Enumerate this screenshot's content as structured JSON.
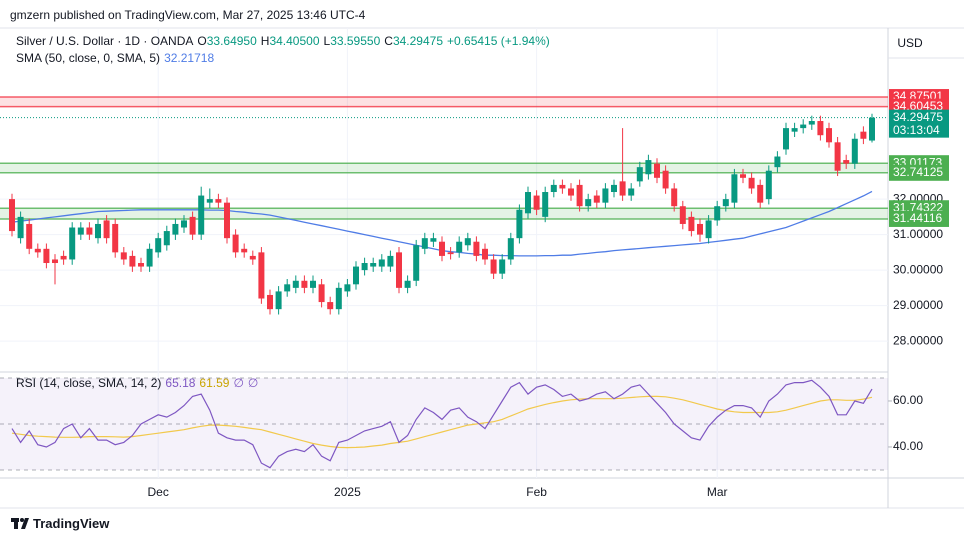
{
  "header": {
    "text": "gmzern published on TradingView.com, Mar 27, 2025 13:46 UTC-4"
  },
  "chart_data": [
    {
      "type": "candlestick",
      "title": "Silver / U.S. Dollar · 1D · OANDA",
      "legend": {
        "o": "O",
        "open": "33.64950",
        "h": "H",
        "high": "34.40500",
        "l": "L",
        "low": "33.59550",
        "c": "C",
        "close": "34.29475",
        "change": "+0.65415 (+1.94%)"
      },
      "currency": "USD",
      "categories": [
        null,
        null,
        null,
        null,
        null,
        null,
        null,
        null,
        null,
        null,
        null,
        null,
        null,
        null,
        null,
        null,
        null,
        "Dec",
        null,
        null,
        null,
        null,
        null,
        null,
        null,
        null,
        null,
        null,
        null,
        null,
        null,
        null,
        null,
        null,
        null,
        null,
        null,
        null,
        null,
        "2025",
        null,
        null,
        null,
        null,
        null,
        null,
        null,
        null,
        null,
        null,
        null,
        null,
        null,
        null,
        null,
        null,
        null,
        null,
        null,
        null,
        null,
        "Feb",
        null,
        null,
        null,
        null,
        null,
        null,
        null,
        null,
        null,
        null,
        null,
        null,
        null,
        null,
        null,
        null,
        null,
        null,
        null,
        null,
        "Mar",
        null,
        null,
        null,
        null,
        null,
        null,
        null,
        null,
        null,
        null,
        null,
        null,
        null,
        null,
        null,
        null,
        null,
        null
      ],
      "open": [
        32.0,
        30.9,
        31.3,
        30.6,
        30.6,
        30.3,
        30.4,
        30.3,
        31.0,
        31.2,
        30.9,
        31.4,
        31.3,
        30.5,
        30.4,
        30.2,
        30.1,
        30.5,
        30.7,
        31.0,
        31.2,
        31.5,
        31.0,
        31.9,
        32.0,
        31.9,
        31.0,
        30.6,
        30.4,
        30.5,
        29.3,
        28.9,
        29.4,
        29.5,
        29.7,
        29.5,
        29.6,
        29.1,
        28.9,
        29.4,
        29.6,
        30.0,
        30.1,
        30.1,
        30.1,
        30.5,
        29.5,
        29.7,
        30.6,
        30.8,
        30.8,
        30.5,
        30.5,
        30.7,
        30.8,
        30.6,
        30.3,
        29.9,
        30.3,
        30.9,
        31.6,
        32.1,
        31.5,
        32.2,
        32.4,
        32.3,
        32.4,
        31.8,
        32.1,
        31.9,
        32.2,
        32.5,
        32.1,
        32.5,
        32.7,
        33.0,
        32.8,
        32.3,
        31.8,
        31.5,
        31.3,
        30.9,
        31.4,
        31.8,
        31.9,
        32.7,
        32.6,
        32.4,
        32.0,
        32.9,
        33.4,
        33.9,
        34.0,
        34.1,
        34.2,
        34.0,
        33.6,
        33.1,
        33.0,
        33.9,
        33.6495
      ],
      "high": [
        32.15,
        31.65,
        31.45,
        30.75,
        30.75,
        30.45,
        30.55,
        31.35,
        31.35,
        31.35,
        31.45,
        31.55,
        31.45,
        30.65,
        30.55,
        30.35,
        30.75,
        31.05,
        31.25,
        31.45,
        31.55,
        31.65,
        32.35,
        32.3,
        32.15,
        32.05,
        31.15,
        30.75,
        30.55,
        30.65,
        29.45,
        29.55,
        29.75,
        29.85,
        29.85,
        29.85,
        29.75,
        29.25,
        29.65,
        29.75,
        30.25,
        30.35,
        30.35,
        30.45,
        30.55,
        30.65,
        29.85,
        30.85,
        31.05,
        31.05,
        30.95,
        30.65,
        30.95,
        31.05,
        30.95,
        30.75,
        30.45,
        30.45,
        31.05,
        31.85,
        32.35,
        32.25,
        32.35,
        32.55,
        32.55,
        32.45,
        32.55,
        32.15,
        32.25,
        32.45,
        32.55,
        34.0,
        32.45,
        33.05,
        33.25,
        33.15,
        32.95,
        32.45,
        31.95,
        31.65,
        31.45,
        31.55,
        31.95,
        32.15,
        32.85,
        32.85,
        32.75,
        32.55,
        32.95,
        33.35,
        34.15,
        34.15,
        34.25,
        34.35,
        34.35,
        34.15,
        33.75,
        33.25,
        33.85,
        34.05,
        34.405
      ],
      "low": [
        30.95,
        30.75,
        30.45,
        30.35,
        30.05,
        29.6,
        30.15,
        30.15,
        30.85,
        30.85,
        30.75,
        30.75,
        30.35,
        30.15,
        29.95,
        29.95,
        29.95,
        30.35,
        30.55,
        30.85,
        31.05,
        30.85,
        30.85,
        31.75,
        31.75,
        30.75,
        30.35,
        30.35,
        30.15,
        29.05,
        28.75,
        28.75,
        29.25,
        29.35,
        29.35,
        29.35,
        28.95,
        28.75,
        28.75,
        29.25,
        29.45,
        29.85,
        29.95,
        29.95,
        29.95,
        29.35,
        29.35,
        29.55,
        30.45,
        30.65,
        30.25,
        30.3,
        30.35,
        30.55,
        30.25,
        30.15,
        29.75,
        29.75,
        30.15,
        30.75,
        31.45,
        31.55,
        31.35,
        32.05,
        32.15,
        31.95,
        31.65,
        31.65,
        31.75,
        31.75,
        32.05,
        31.95,
        31.95,
        32.35,
        32.55,
        32.45,
        32.15,
        31.65,
        31.15,
        30.95,
        30.8,
        30.75,
        31.25,
        31.65,
        31.75,
        32.45,
        32.15,
        31.75,
        31.85,
        32.75,
        33.25,
        33.75,
        33.85,
        33.95,
        33.65,
        33.45,
        32.65,
        32.85,
        32.85,
        33.55,
        33.5955
      ],
      "close": [
        31.1,
        31.5,
        30.6,
        30.5,
        30.2,
        30.2,
        30.3,
        31.2,
        31.2,
        31.0,
        31.3,
        30.9,
        30.5,
        30.3,
        30.1,
        30.1,
        30.6,
        30.9,
        31.1,
        31.3,
        31.4,
        31.0,
        32.1,
        32.0,
        31.9,
        30.9,
        30.5,
        30.5,
        30.3,
        29.2,
        28.9,
        29.4,
        29.6,
        29.7,
        29.5,
        29.7,
        29.1,
        28.9,
        29.5,
        29.6,
        30.1,
        30.2,
        30.2,
        30.3,
        30.4,
        29.5,
        29.7,
        30.7,
        30.9,
        30.9,
        30.4,
        30.45,
        30.8,
        30.9,
        30.4,
        30.3,
        29.9,
        30.3,
        30.9,
        31.7,
        32.2,
        31.7,
        32.2,
        32.4,
        32.3,
        32.1,
        31.8,
        32.0,
        31.9,
        32.3,
        32.4,
        32.1,
        32.3,
        32.9,
        33.1,
        32.6,
        32.3,
        31.8,
        31.3,
        31.1,
        31.0,
        31.4,
        31.8,
        32.0,
        32.7,
        32.6,
        32.3,
        31.9,
        32.8,
        33.2,
        34.0,
        34.0,
        34.1,
        34.2,
        33.8,
        33.6,
        32.8,
        33.0,
        33.7,
        33.7,
        34.29475
      ],
      "up_color": "#089981",
      "down_color": "#f23645",
      "ylim": [
        27.13,
        36.82
      ],
      "yticks": [
        {
          "value": 28,
          "label": "28.00000"
        },
        {
          "value": 29,
          "label": "29.00000"
        },
        {
          "value": 30,
          "label": "30.00000"
        },
        {
          "value": 31,
          "label": "31.00000"
        },
        {
          "value": 32,
          "label": "32.00000"
        }
      ],
      "grid": true,
      "sma": {
        "name": "SMA (50, close, 0, SMA, 5)",
        "color": "#4f7ce6",
        "values": [
          31.35,
          31.38,
          31.41,
          31.44,
          31.47,
          31.5,
          31.53,
          31.56,
          31.59,
          31.62,
          31.65,
          31.66,
          31.67,
          31.68,
          31.69,
          31.7,
          31.7,
          31.7,
          31.7,
          31.7,
          31.7,
          31.7,
          31.7,
          31.69,
          31.69,
          31.68,
          31.65,
          31.63,
          31.6,
          31.58,
          31.55,
          31.5,
          31.45,
          31.4,
          31.35,
          31.3,
          31.25,
          31.2,
          31.15,
          31.1,
          31.05,
          31.0,
          30.95,
          30.9,
          30.85,
          30.8,
          30.75,
          30.7,
          30.65,
          30.6,
          30.55,
          30.52,
          30.5,
          30.47,
          30.45,
          30.42,
          30.42,
          30.41,
          30.41,
          30.4,
          30.4,
          30.4,
          30.41,
          30.41,
          30.42,
          30.42,
          30.45,
          30.47,
          30.5,
          30.52,
          30.55,
          30.57,
          30.59,
          30.61,
          30.63,
          30.65,
          30.67,
          30.69,
          30.71,
          30.73,
          30.75,
          30.78,
          30.81,
          30.84,
          30.87,
          30.9,
          30.96,
          31.02,
          31.08,
          31.14,
          31.2,
          31.29,
          31.38,
          31.47,
          31.56,
          31.65,
          31.76,
          31.87,
          31.98,
          32.09,
          32.21718
        ]
      },
      "zones": [
        {
          "low": 34.60453,
          "high": 34.87501,
          "color": "#f23645"
        },
        {
          "low": 32.74125,
          "high": 33.01173,
          "color": "#4caf50"
        },
        {
          "low": 31.44116,
          "high": 31.74322,
          "color": "#4caf50"
        }
      ],
      "countdown": "03:13:04"
    },
    {
      "type": "line",
      "name": "RSI (14, close, SMA, 14, 2)",
      "color": "#7e57c2",
      "values": [
        48,
        42,
        47,
        41,
        40,
        42,
        48,
        50,
        44,
        48,
        43,
        43,
        41,
        42,
        45,
        50,
        52,
        54,
        53,
        55,
        58,
        62,
        63,
        56,
        46,
        44,
        43,
        43,
        41,
        33,
        31,
        36,
        38,
        39,
        38,
        41,
        36,
        34,
        42,
        43,
        45,
        47,
        48,
        49,
        51,
        42,
        45,
        52,
        57,
        55,
        52,
        56,
        57,
        53,
        51,
        48,
        54,
        60,
        66,
        68,
        63,
        66,
        67,
        65,
        62,
        63,
        60,
        61,
        63,
        64,
        61,
        63,
        66,
        67,
        63,
        59,
        55,
        50,
        47,
        44,
        43,
        49,
        53,
        56,
        58,
        58,
        57,
        53,
        60,
        63,
        67,
        68,
        68,
        69,
        66,
        62,
        54,
        54,
        60,
        59,
        65.18
      ],
      "sma": {
        "color": "#f2c94c",
        "values": [
          46,
          45.5,
          45,
          44.7,
          44.5,
          44.3,
          44.2,
          44.2,
          44.3,
          44.5,
          44.5,
          44.5,
          44.4,
          44.3,
          44.5,
          45,
          45.5,
          46,
          46.5,
          47,
          47.5,
          48.3,
          49,
          49.5,
          49.5,
          49.3,
          49,
          48.5,
          48,
          47.5,
          46.5,
          45.5,
          44.5,
          43.5,
          42.5,
          41.5,
          40.8,
          40.2,
          39.8,
          39.7,
          39.8,
          40,
          40.4,
          40.8,
          41.5,
          42,
          42.5,
          43.5,
          44.5,
          45.5,
          46.5,
          47.5,
          48.5,
          49.5,
          50,
          50.5,
          51,
          52,
          53.5,
          55,
          56.5,
          57.5,
          58.5,
          59.3,
          60,
          60.5,
          60.8,
          61,
          61,
          61,
          61,
          61.2,
          61.5,
          61.8,
          62,
          62,
          61.8,
          61.2,
          60.5,
          59.5,
          58.5,
          57.5,
          56.5,
          55.8,
          55.3,
          55,
          55,
          55,
          55,
          55.3,
          56,
          57,
          58,
          59,
          60,
          60.5,
          60.5,
          60.3,
          60.3,
          60.8,
          61.59
        ]
      },
      "na_labels": [
        "∅",
        "∅"
      ],
      "ylim": [
        26.5,
        72.6
      ],
      "yticks": [
        {
          "value": 40,
          "label": "40.00"
        },
        {
          "value": 60,
          "label": "60.00"
        }
      ],
      "bands": [
        70,
        50,
        30
      ]
    }
  ],
  "footer": {
    "brand": "TradingView"
  }
}
